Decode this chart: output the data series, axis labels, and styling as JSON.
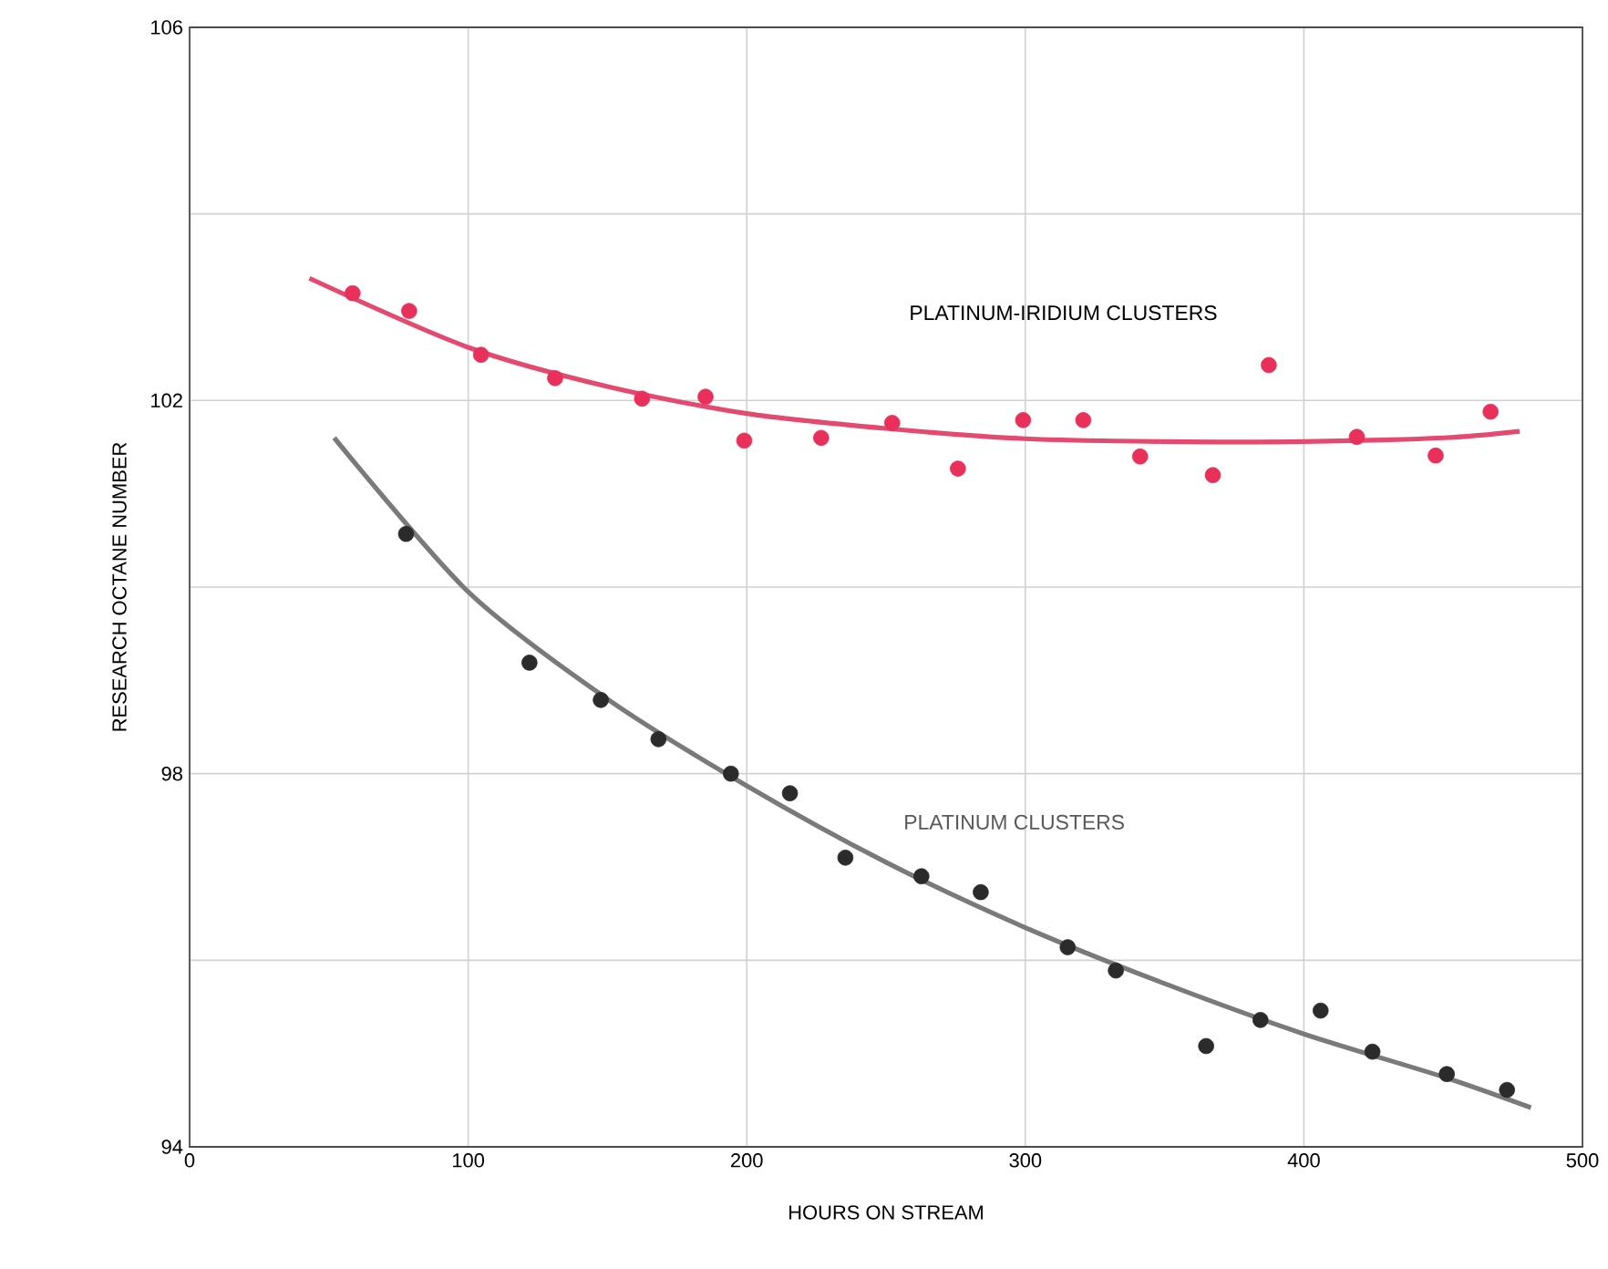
{
  "chart_data": {
    "type": "scatter",
    "xlabel": "HOURS ON STREAM",
    "ylabel": "RESEARCH OCTANE NUMBER",
    "xlim": [
      0,
      500
    ],
    "ylim": [
      94,
      106
    ],
    "xticks": [
      0,
      100,
      200,
      300,
      400,
      500
    ],
    "yticks": [
      94,
      {
        "value": 96,
        "label": null
      },
      98,
      {
        "value": 100,
        "label": null
      },
      102,
      {
        "value": 104,
        "label": null
      },
      106
    ],
    "grid": true,
    "marker": "circle",
    "legend": false,
    "series": [
      {
        "name": "PLATINUM-IRIDIUM CLUSTERS",
        "color": "#e8305a",
        "x": [
          58.5,
          78.8,
          104.6,
          131.2,
          162.4,
          185.2,
          199.1,
          226.7,
          252.2,
          275.8,
          299.2,
          320.8,
          341.2,
          367.3,
          387.4,
          419,
          447.3,
          467
        ],
        "values": [
          103.15,
          102.96,
          102.49,
          102.24,
          102.02,
          102.04,
          101.57,
          101.6,
          101.76,
          101.27,
          101.79,
          101.79,
          101.4,
          101.2,
          102.38,
          101.61,
          101.41,
          101.88
        ]
      },
      {
        "name": "PLATINUM CLUSTERS",
        "color": "#2b2b2b",
        "x": [
          77.7,
          122,
          147.6,
          168.3,
          194.3,
          215.5,
          235.4,
          262.7,
          284,
          315.2,
          332.5,
          364.9,
          384.4,
          406,
          424.6,
          451.3,
          472.9
        ],
        "values": [
          100.57,
          99.19,
          98.79,
          98.37,
          98.0,
          97.79,
          97.1,
          96.9,
          96.73,
          96.14,
          95.89,
          95.08,
          95.36,
          95.46,
          95.02,
          94.78,
          94.61
        ]
      },
      {
        "type": "line",
        "color": "#e44a70",
        "marker": "none",
        "x": [
          43,
          100,
          150,
          200,
          250,
          300,
          350,
          400,
          450,
          477.4
        ],
        "values": [
          103.31,
          102.57,
          102.15,
          101.86,
          101.7,
          101.59,
          101.56,
          101.56,
          101.6,
          101.67
        ]
      },
      {
        "type": "line",
        "color": "#7a7a7a",
        "marker": "none",
        "x": [
          51.9,
          100,
          150,
          200,
          250,
          300,
          350,
          400,
          450,
          481.5
        ],
        "values": [
          101.6,
          99.95,
          98.8,
          97.87,
          97.05,
          96.35,
          95.75,
          95.21,
          94.75,
          94.42
        ]
      }
    ]
  }
}
